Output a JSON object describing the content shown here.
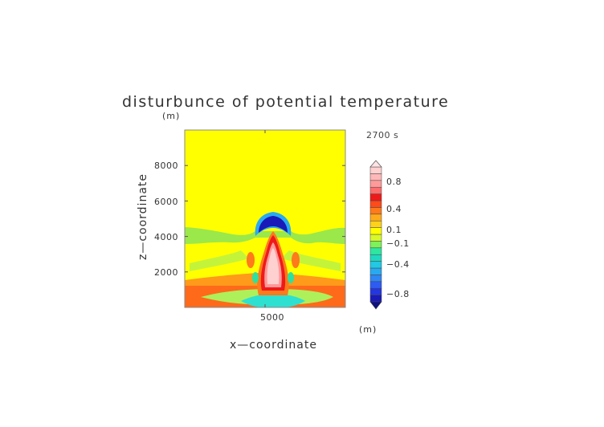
{
  "chart_data": {
    "type": "heatmap",
    "title": "disturbunce of potential temperature",
    "time_label": "2700 s",
    "xlabel": "x—coordinate",
    "ylabel": "z—coordinate",
    "x_unit": "(m)",
    "y_unit": "(m)",
    "xlim": [
      0,
      10000
    ],
    "ylim": [
      0,
      10000
    ],
    "x_ticks": [
      {
        "value": 5000,
        "label": "5000"
      }
    ],
    "y_ticks": [
      {
        "value": 2000,
        "label": "2000"
      },
      {
        "value": 4000,
        "label": "4000"
      },
      {
        "value": 6000,
        "label": "6000"
      },
      {
        "value": 8000,
        "label": "8000"
      }
    ],
    "colorbar": {
      "levels": [
        -1.0,
        -0.9,
        -0.8,
        -0.7,
        -0.6,
        -0.5,
        -0.4,
        -0.3,
        -0.2,
        -0.1,
        0.0,
        0.1,
        0.2,
        0.3,
        0.4,
        0.5,
        0.6,
        0.7,
        0.8,
        0.9,
        1.0
      ],
      "colors": [
        "#1a1ab8",
        "#2436e0",
        "#2e5cf2",
        "#2f86f5",
        "#28aaf0",
        "#22c8e4",
        "#1fd8c0",
        "#2ee6a0",
        "#7df25a",
        "#d8f82a",
        "#ffff00",
        "#ffd21a",
        "#ffaa1a",
        "#ff7a1a",
        "#ff4a1a",
        "#ee1a1a",
        "#ff6e6e",
        "#ff9a9a",
        "#ffb8b8",
        "#ffd0d0"
      ],
      "tick_labels": [
        {
          "value": 0.8,
          "label": "0.8"
        },
        {
          "value": 0.4,
          "label": "0.4"
        },
        {
          "value": 0.1,
          "label": "0.1"
        },
        {
          "value": -0.1,
          "label": "−0.1"
        },
        {
          "value": -0.4,
          "label": "−0.4"
        },
        {
          "value": -0.8,
          "label": "−0.8"
        }
      ],
      "extend": "both"
    },
    "field_features": [
      {
        "kind": "background",
        "value": 0.05,
        "color": "#ffff00"
      },
      {
        "kind": "low-level warm layer",
        "z_range": [
          0,
          1500
        ],
        "value": 0.45,
        "color": "#ff6a1a"
      },
      {
        "kind": "warm plume core",
        "x": 5000,
        "z_range": [
          400,
          4200
        ],
        "value": 1.0,
        "color": "#ffd0d0"
      },
      {
        "kind": "cold cap",
        "x": 5000,
        "z_range": [
          3600,
          5000
        ],
        "value": -0.9,
        "color": "#1a1ab8"
      },
      {
        "kind": "cool band",
        "z_range": [
          3500,
          4400
        ],
        "value": -0.15,
        "color": "#9be84a"
      },
      {
        "kind": "surface cool band",
        "z_range": [
          0,
          700
        ],
        "value": -0.35,
        "color": "#2ee0d0"
      }
    ]
  }
}
